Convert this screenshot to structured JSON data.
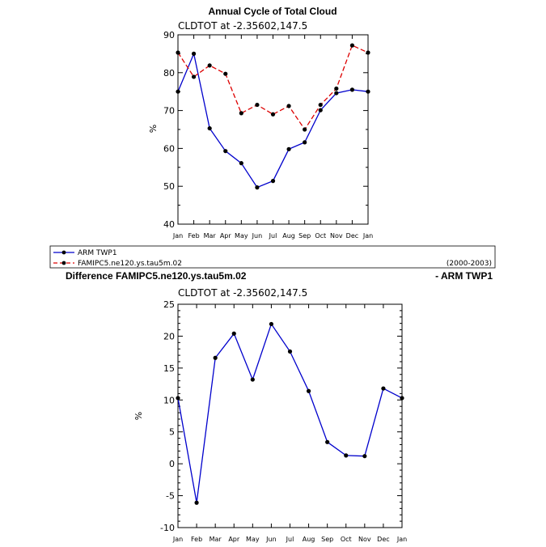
{
  "months": [
    "Jan",
    "Feb",
    "Mar",
    "Apr",
    "May",
    "Jun",
    "Jul",
    "Aug",
    "Sep",
    "Oct",
    "Nov",
    "Dec",
    "Jan"
  ],
  "chart_data": [
    {
      "type": "line",
      "title": "Annual Cycle of Total Cloud",
      "subtitle": "CLDTOT at -2.35602,147.5",
      "ylabel": "%",
      "xlabel": "",
      "ylim": [
        40,
        90
      ],
      "yticks": [
        "40",
        "50",
        "60",
        "70",
        "80",
        "90"
      ],
      "categories": [
        "Jan",
        "Feb",
        "Mar",
        "Apr",
        "May",
        "Jun",
        "Jul",
        "Aug",
        "Sep",
        "Oct",
        "Nov",
        "Dec",
        "Jan"
      ],
      "series": [
        {
          "name": "ARM TWP1",
          "color": "#0000cc",
          "dash": "solid",
          "values": [
            75.0,
            85.0,
            65.3,
            59.3,
            56.1,
            49.7,
            51.4,
            59.8,
            61.6,
            70.1,
            74.6,
            75.5,
            75.0
          ]
        },
        {
          "name": "FAMIPC5.ne120.ys.tau5m.02",
          "color": "#dd0000",
          "dash": "dashed",
          "values": [
            85.3,
            78.9,
            81.9,
            79.7,
            69.3,
            71.5,
            69.0,
            71.2,
            65.0,
            71.5,
            75.8,
            87.2,
            85.3
          ]
        }
      ],
      "legend": {
        "position": "bottom",
        "period": "(2000-2003)"
      }
    },
    {
      "type": "line",
      "title": "Difference FAMIPC5.ne120.ys.tau5m.02",
      "title_right": "- ARM TWP1",
      "subtitle": "CLDTOT at -2.35602,147.5",
      "ylabel": "%",
      "xlabel": "",
      "ylim": [
        -10,
        25
      ],
      "yticks": [
        "-10",
        "-5",
        "0",
        "5",
        "10",
        "15",
        "20",
        "25"
      ],
      "categories": [
        "Jan",
        "Feb",
        "Mar",
        "Apr",
        "May",
        "Jun",
        "Jul",
        "Aug",
        "Sep",
        "Oct",
        "Nov",
        "Dec",
        "Jan"
      ],
      "series": [
        {
          "color": "#0000cc",
          "dash": "solid",
          "values": [
            10.3,
            -6.1,
            16.6,
            20.4,
            13.2,
            21.9,
            17.6,
            11.4,
            3.4,
            1.3,
            1.2,
            11.8,
            10.3
          ]
        }
      ]
    }
  ]
}
